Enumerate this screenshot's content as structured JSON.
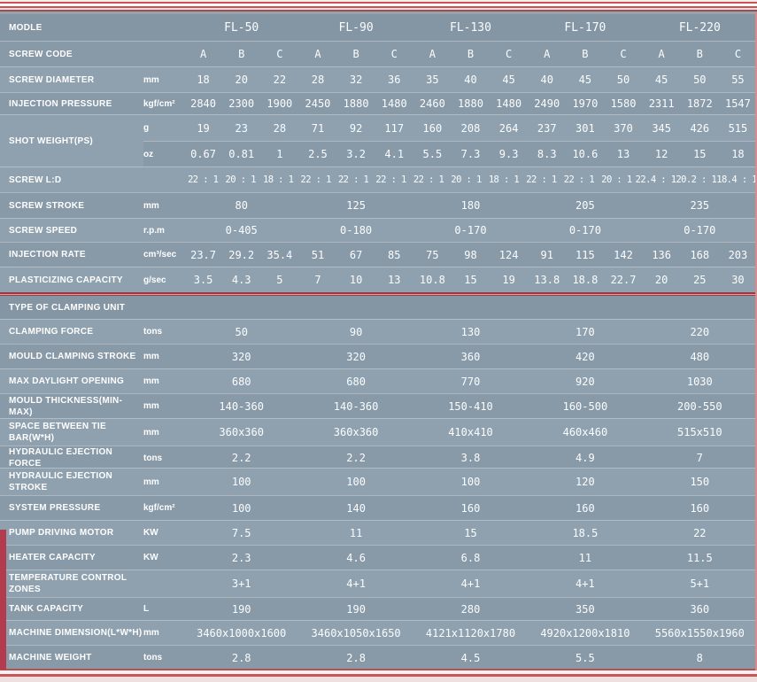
{
  "accent": {
    "red": "#b23c4e",
    "table_bg": "#8a9dab",
    "text": "#ffffff"
  },
  "table": {
    "models": [
      "FL-50",
      "FL-90",
      "FL-130",
      "FL-170",
      "FL-220"
    ],
    "codes": [
      "A",
      "B",
      "C",
      "A",
      "B",
      "C",
      "A",
      "B",
      "C",
      "A",
      "B",
      "C",
      "A",
      "B",
      "C"
    ],
    "rows": [
      {
        "kind": "model-header",
        "label": "MODLE"
      },
      {
        "kind": "codes",
        "label": "SCREW CODE"
      },
      {
        "kind": "cells",
        "label": "SCREW DIAMETER",
        "unit": "mm",
        "values": [
          "18",
          "20",
          "22",
          "28",
          "32",
          "36",
          "35",
          "40",
          "45",
          "40",
          "45",
          "50",
          "45",
          "50",
          "55"
        ]
      },
      {
        "kind": "cells",
        "label": "INJECTION PRESSURE",
        "unit": "kgf/cm²",
        "values": [
          "2840",
          "2300",
          "1900",
          "2450",
          "1880",
          "1480",
          "2460",
          "1880",
          "1480",
          "2490",
          "1970",
          "1580",
          "2311",
          "1872",
          "1547"
        ]
      },
      {
        "kind": "shot",
        "label": "SHOT WEIGHT(PS)",
        "sub": [
          {
            "unit": "g",
            "values": [
              "19",
              "23",
              "28",
              "71",
              "92",
              "117",
              "160",
              "208",
              "264",
              "237",
              "301",
              "370",
              "345",
              "426",
              "515"
            ]
          },
          {
            "unit": "oz",
            "values": [
              "0.67",
              "0.81",
              "1",
              "2.5",
              "3.2",
              "4.1",
              "5.5",
              "7.3",
              "9.3",
              "8.3",
              "10.6",
              "13",
              "12",
              "15",
              "18"
            ]
          }
        ]
      },
      {
        "kind": "cells",
        "label": "SCREW L:D",
        "unit": "",
        "small": true,
        "values": [
          "22 : 1",
          "20 : 1",
          "18 : 1",
          "22 : 1",
          "22 : 1",
          "22 : 1",
          "22 : 1",
          "20 : 1",
          "18 : 1",
          "22 : 1",
          "22 : 1",
          "20 : 1",
          "22.4 : 1",
          "20.2 : 1",
          "18.4 : 1"
        ]
      },
      {
        "kind": "merged",
        "label": "SCREW STROKE",
        "unit": "mm",
        "values": [
          "80",
          "125",
          "180",
          "205",
          "235"
        ]
      },
      {
        "kind": "merged",
        "label": "SCREW SPEED",
        "unit": "r.p.m",
        "values": [
          "0-405",
          "0-180",
          "0-170",
          "0-170",
          "0-170"
        ]
      },
      {
        "kind": "cells",
        "label": "INJECTION RATE",
        "unit": "cm³/sec",
        "values": [
          "23.7",
          "29.2",
          "35.4",
          "51",
          "67",
          "85",
          "75",
          "98",
          "124",
          "91",
          "115",
          "142",
          "136",
          "168",
          "203"
        ]
      },
      {
        "kind": "cells",
        "label": "PLASTICIZING CAPACITY",
        "unit": "g/sec",
        "values": [
          "3.5",
          "4.3",
          "5",
          "7",
          "10",
          "13",
          "10.8",
          "15",
          "19",
          "13.8",
          "18.8",
          "22.7",
          "20",
          "25",
          "30"
        ]
      },
      {
        "kind": "divider"
      },
      {
        "kind": "section",
        "label": "TYPE OF CLAMPING UNIT"
      },
      {
        "kind": "merged",
        "label": "CLAMPING FORCE",
        "unit": "tons",
        "values": [
          "50",
          "90",
          "130",
          "170",
          "220"
        ]
      },
      {
        "kind": "merged",
        "label": "MOULD CLAMPING STROKE",
        "unit": "mm",
        "values": [
          "320",
          "320",
          "360",
          "420",
          "480"
        ]
      },
      {
        "kind": "merged",
        "label": "MAX DAYLIGHT OPENING",
        "unit": "mm",
        "values": [
          "680",
          "680",
          "770",
          "920",
          "1030"
        ]
      },
      {
        "kind": "merged",
        "label": "MOULD THICKNESS(MIN-MAX)",
        "unit": "mm",
        "values": [
          "140-360",
          "140-360",
          "150-410",
          "160-500",
          "200-550"
        ]
      },
      {
        "kind": "merged",
        "label": "SPACE BETWEEN TIE\nBAR(W*H)",
        "unit": "mm",
        "values": [
          "360x360",
          "360x360",
          "410x410",
          "460x460",
          "515x510"
        ]
      },
      {
        "kind": "merged",
        "label": "HYDRAULIC EJECTION FORCE",
        "unit": "tons",
        "values": [
          "2.2",
          "2.2",
          "3.8",
          "4.9",
          "7"
        ]
      },
      {
        "kind": "merged",
        "label": "HYDRAULIC EJECTION\nSTROKE",
        "unit": "mm",
        "values": [
          "100",
          "100",
          "100",
          "120",
          "150"
        ]
      },
      {
        "kind": "merged",
        "label": "SYSTEM PRESSURE",
        "unit": "kgf/cm²",
        "values": [
          "100",
          "140",
          "160",
          "160",
          "160"
        ]
      },
      {
        "kind": "merged",
        "label": "PUMP DRIVING MOTOR",
        "unit": "KW",
        "values": [
          "7.5",
          "11",
          "15",
          "18.5",
          "22"
        ]
      },
      {
        "kind": "merged",
        "label": "HEATER CAPACITY",
        "unit": "KW",
        "values": [
          "2.3",
          "4.6",
          "6.8",
          "11",
          "11.5"
        ]
      },
      {
        "kind": "merged",
        "label": "TEMPERATURE CONTROL\nZONES",
        "unit": "",
        "values": [
          "3+1",
          "4+1",
          "4+1",
          "4+1",
          "5+1"
        ]
      },
      {
        "kind": "merged",
        "label": "TANK CAPACITY",
        "unit": "L",
        "values": [
          "190",
          "190",
          "280",
          "350",
          "360"
        ]
      },
      {
        "kind": "merged",
        "label": "MACHINE DIMENSION(L*W*H)",
        "unit": "mm",
        "values": [
          "3460x1000x1600",
          "3460x1050x1650",
          "4121x1120x1780",
          "4920x1200x1810",
          "5560x1550x1960"
        ]
      },
      {
        "kind": "merged",
        "label": "MACHINE WEIGHT",
        "unit": "tons",
        "values": [
          "2.8",
          "2.8",
          "4.5",
          "5.5",
          "8"
        ]
      }
    ]
  }
}
